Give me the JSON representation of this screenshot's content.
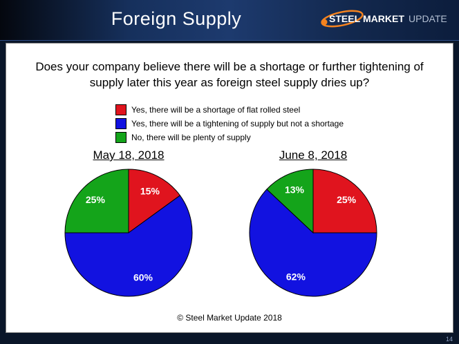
{
  "slide": {
    "title": "Foreign Supply",
    "footer": "© Steel Market Update 2018",
    "page_number": "14"
  },
  "logo": {
    "steel": "STEEL",
    "market": "MARKET",
    "update": "UPDATE",
    "accent_color": "#f5831f"
  },
  "question": "Does your company believe there will be a shortage or further tightening of supply later this year as foreign steel supply dries up?",
  "legend": {
    "items": [
      {
        "label": "Yes, there will be a shortage of flat rolled steel",
        "color": "#e0141e"
      },
      {
        "label": "Yes, there will be a tightening of supply but not a shortage",
        "color": "#1212e0"
      },
      {
        "label": "No, there will be plenty of supply",
        "color": "#14a41a"
      }
    ]
  },
  "chart_data": [
    {
      "type": "pie",
      "title": "May 18, 2018",
      "categories": [
        "Yes, there will be a shortage of flat rolled steel",
        "Yes, there will be a tightening of supply but not a shortage",
        "No, there will be plenty of supply"
      ],
      "values": [
        15,
        60,
        25
      ],
      "data_labels": [
        "15%",
        "60%",
        "25%"
      ],
      "colors": [
        "#e0141e",
        "#1212e0",
        "#14a41a"
      ],
      "start_angle_deg": 0,
      "direction": "clockwise",
      "legend_position": "top"
    },
    {
      "type": "pie",
      "title": "June 8, 2018",
      "categories": [
        "Yes, there will be a shortage of flat rolled steel",
        "Yes, there will be a tightening of supply but not a shortage",
        "No, there will be plenty of supply"
      ],
      "values": [
        25,
        62,
        13
      ],
      "data_labels": [
        "25%",
        "62%",
        "13%"
      ],
      "colors": [
        "#e0141e",
        "#1212e0",
        "#14a41a"
      ],
      "start_angle_deg": 0,
      "direction": "clockwise",
      "legend_position": "top"
    }
  ]
}
